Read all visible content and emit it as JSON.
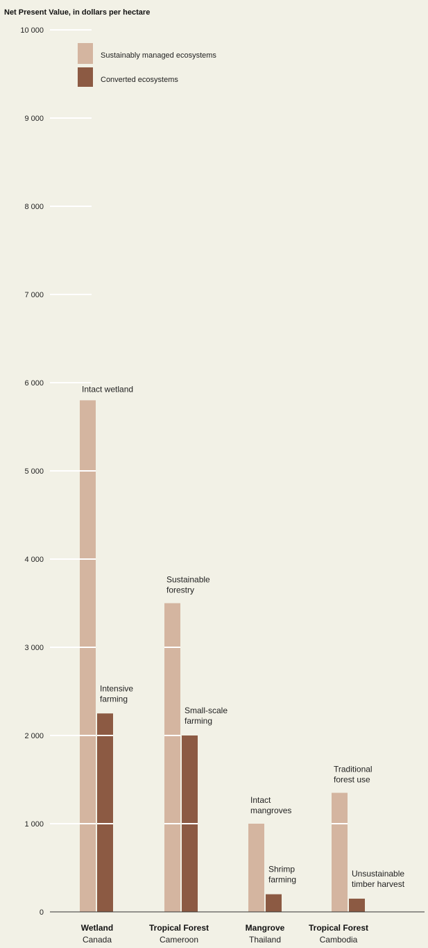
{
  "chart_data": {
    "type": "bar",
    "ylabel": "Net Present Value, in dollars per hectare",
    "ylim": [
      0,
      10000
    ],
    "yticks": [
      {
        "value": 0,
        "label": "0"
      },
      {
        "value": 1000,
        "label": "1 000"
      },
      {
        "value": 2000,
        "label": "2 000"
      },
      {
        "value": 3000,
        "label": "3 000"
      },
      {
        "value": 4000,
        "label": "4 000"
      },
      {
        "value": 5000,
        "label": "5 000"
      },
      {
        "value": 6000,
        "label": "6 000"
      },
      {
        "value": 7000,
        "label": "7 000"
      },
      {
        "value": 8000,
        "label": "8 000"
      },
      {
        "value": 9000,
        "label": "9 000"
      },
      {
        "value": 10000,
        "label": "10 000"
      }
    ],
    "grid": true,
    "legend_position": "top-left",
    "categories": [
      {
        "name": "Wetland",
        "sub": "Canada"
      },
      {
        "name": "Tropical Forest",
        "sub": "Cameroon"
      },
      {
        "name": "Mangrove",
        "sub": "Thailand"
      },
      {
        "name": "Tropical Forest",
        "sub": "Cambodia"
      }
    ],
    "series": [
      {
        "name": "Sustainably managed ecosystems",
        "color": "#d4b5a0",
        "values": [
          5800,
          3500,
          1000,
          1350
        ],
        "annotations": [
          [
            "Intact wetland"
          ],
          [
            "Sustainable",
            "forestry"
          ],
          [
            "Intact",
            "mangroves"
          ],
          [
            "Traditional",
            "forest use"
          ]
        ]
      },
      {
        "name": "Converted ecosystems",
        "color": "#8c5a43",
        "values": [
          2250,
          2000,
          200,
          150
        ],
        "annotations": [
          [
            "Intensive",
            "farming"
          ],
          [
            "Small-scale",
            "farming"
          ],
          [
            "Shrimp",
            "farming"
          ],
          [
            "Unsustainable",
            "timber harvest"
          ]
        ]
      }
    ]
  }
}
